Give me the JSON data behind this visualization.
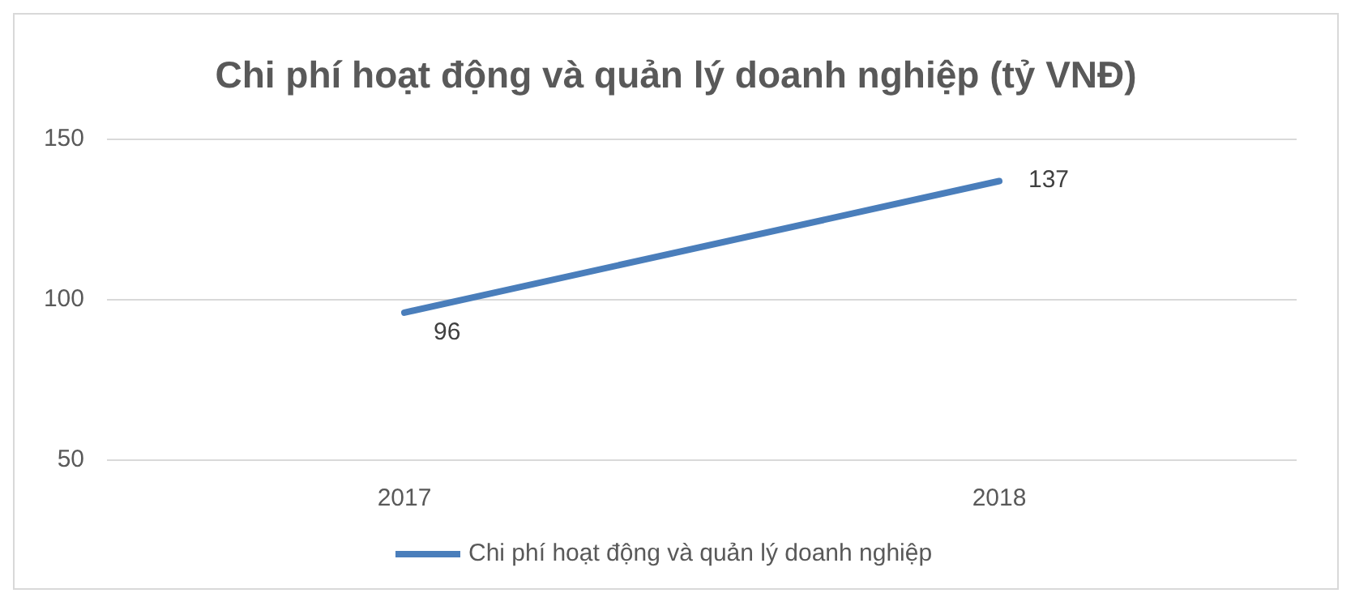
{
  "chart_data": {
    "type": "line",
    "title": "Chi phí hoạt động và quản lý doanh nghiệp (tỷ VNĐ)",
    "categories": [
      "2017",
      "2018"
    ],
    "series": [
      {
        "name": "Chi phí hoạt động và quản lý doanh nghiệp",
        "color": "#4a7ebb",
        "values": [
          96,
          137
        ]
      }
    ],
    "ylim": [
      50,
      150
    ],
    "yticks": [
      50,
      100,
      150
    ],
    "grid": "y",
    "legend": "bottom",
    "data_labels": true,
    "marker": "none",
    "line_style": "solid"
  }
}
